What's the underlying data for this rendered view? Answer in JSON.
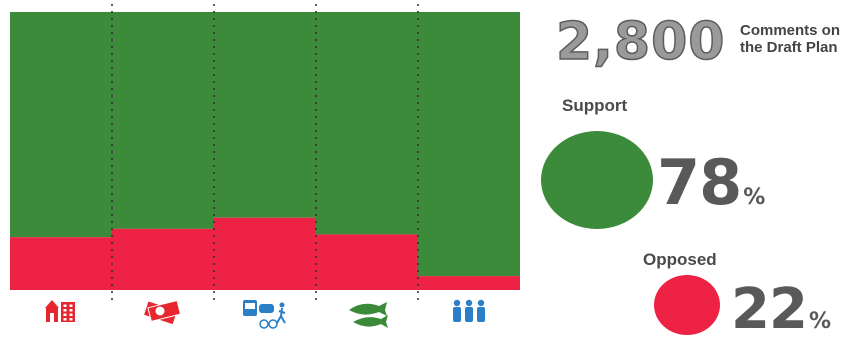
{
  "chart_data": {
    "type": "bar",
    "subtype": "stacked-100",
    "categories": [
      "Housing",
      "Economy",
      "Transportation",
      "Environment",
      "Community"
    ],
    "series": [
      {
        "values": [
          19,
          22,
          26,
          20,
          5
        ]
      },
      {
        "values": [
          81,
          78,
          74,
          80,
          95
        ]
      }
    ],
    "category_icons": [
      "house-building-icon",
      "money-icon",
      "transit-car-bike-pedestrian-icon",
      "fish-icon",
      "people-icon"
    ],
    "ylim": [
      0,
      100
    ],
    "xlabel": "",
    "ylabel": "",
    "grid": false,
    "legend": "none"
  },
  "colors": {
    "support": "#3b8b3b",
    "opposed": "#ee2244",
    "icon_red": "#e8262f",
    "icon_blue": "#2a7fc8",
    "icon_green": "#3a8a3a",
    "divider": "#333333"
  },
  "summary": {
    "total_comments": "2,800",
    "caption_line1": "Comments on",
    "caption_line2": "the Draft Plan",
    "support_label": "Support",
    "support_number": "78",
    "support_symbol": "%",
    "opposed_label": "Opposed",
    "opposed_number": "22",
    "opposed_symbol": "%"
  }
}
